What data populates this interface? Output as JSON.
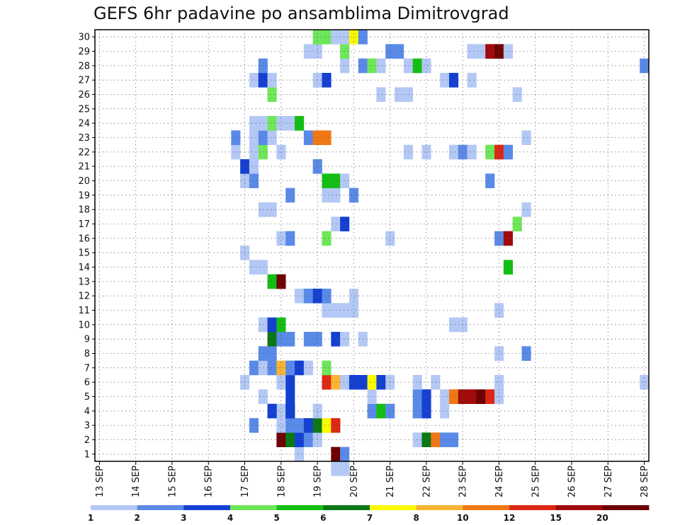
{
  "chart_data": {
    "type": "heatmap",
    "title": "GEFS 6hr padavine po ansamblima Dimitrovgrad",
    "xlabel": "",
    "ylabel": "",
    "x_tick_labels": [
      "13 SEP",
      "14 SEP",
      "15 SEP",
      "16 SEP",
      "17 SEP",
      "18 SEP",
      "19 SEP",
      "20 SEP",
      "21 SEP",
      "22 SEP",
      "23 SEP",
      "24 SEP",
      "25 SEP",
      "26 SEP",
      "27 SEP",
      "28 SEP"
    ],
    "y_tick_labels": [
      "1",
      "2",
      "3",
      "4",
      "5",
      "6",
      "7",
      "8",
      "9",
      "10",
      "11",
      "12",
      "13",
      "14",
      "15",
      "16",
      "17",
      "18",
      "19",
      "20",
      "21",
      "22",
      "23",
      "24",
      "25",
      "26",
      "27",
      "28",
      "29",
      "30"
    ],
    "x_range": [
      0,
      61
    ],
    "y_range": [
      0.5,
      30.5
    ],
    "grid": true,
    "color_levels": [
      {
        "label": "1",
        "color": "#b4c8f5"
      },
      {
        "label": "2",
        "color": "#5a8ae8"
      },
      {
        "label": "3",
        "color": "#1440d2"
      },
      {
        "label": "4",
        "color": "#6ee65a"
      },
      {
        "label": "5",
        "color": "#14be14"
      },
      {
        "label": "6",
        "color": "#0a7814"
      },
      {
        "label": "7",
        "color": "#fafa00"
      },
      {
        "label": "8",
        "color": "#fab432"
      },
      {
        "label": "10",
        "color": "#f07814"
      },
      {
        "label": "12",
        "color": "#dc2814"
      },
      {
        "label": "15",
        "color": "#a00a0a"
      },
      {
        "label": "20",
        "color": "#6e0000"
      }
    ],
    "colorbar_labels": [
      "1",
      "2",
      "3",
      "4",
      "5",
      "6",
      "7",
      "8",
      "10",
      "12",
      "15",
      "20"
    ],
    "cells": [
      {
        "x": 26.5,
        "y": 0,
        "c": 0
      },
      {
        "x": 27.5,
        "y": 0,
        "c": 0
      },
      {
        "x": 22.5,
        "y": 1,
        "c": 0
      },
      {
        "x": 26.5,
        "y": 1,
        "c": 11
      },
      {
        "x": 27.5,
        "y": 1,
        "c": 1
      },
      {
        "x": 20.5,
        "y": 2,
        "c": 11
      },
      {
        "x": 21.5,
        "y": 2,
        "c": 5
      },
      {
        "x": 22.5,
        "y": 2,
        "c": 2
      },
      {
        "x": 23.5,
        "y": 2,
        "c": 1
      },
      {
        "x": 24.5,
        "y": 2,
        "c": 0
      },
      {
        "x": 35.5,
        "y": 2,
        "c": 0
      },
      {
        "x": 36.5,
        "y": 2,
        "c": 5
      },
      {
        "x": 37.5,
        "y": 2,
        "c": 8
      },
      {
        "x": 38.5,
        "y": 2,
        "c": 1
      },
      {
        "x": 39.5,
        "y": 2,
        "c": 1
      },
      {
        "x": 17.5,
        "y": 3,
        "c": 1
      },
      {
        "x": 20.5,
        "y": 3,
        "c": 0
      },
      {
        "x": 21.5,
        "y": 3,
        "c": 1
      },
      {
        "x": 22.5,
        "y": 3,
        "c": 1
      },
      {
        "x": 23.5,
        "y": 3,
        "c": 2
      },
      {
        "x": 24.5,
        "y": 3,
        "c": 5
      },
      {
        "x": 25.5,
        "y": 3,
        "c": 6
      },
      {
        "x": 26.5,
        "y": 3,
        "c": 9
      },
      {
        "x": 20.5,
        "y": 4,
        "c": 0
      },
      {
        "x": 21.5,
        "y": 4,
        "c": 2
      },
      {
        "x": 24.5,
        "y": 4,
        "c": 0
      },
      {
        "x": 30.5,
        "y": 4,
        "c": 1
      },
      {
        "x": 31.5,
        "y": 4,
        "c": 4
      },
      {
        "x": 32.5,
        "y": 4,
        "c": 1
      },
      {
        "x": 35.5,
        "y": 4,
        "c": 1
      },
      {
        "x": 36.5,
        "y": 4,
        "c": 2
      },
      {
        "x": 38.5,
        "y": 4,
        "c": 0
      },
      {
        "x": 19.5,
        "y": 4,
        "c": 2
      },
      {
        "x": 21.5,
        "y": 4,
        "c": 2
      },
      {
        "x": 18.5,
        "y": 5,
        "c": 0
      },
      {
        "x": 21.5,
        "y": 5,
        "c": 2
      },
      {
        "x": 30.5,
        "y": 5,
        "c": 0
      },
      {
        "x": 35.5,
        "y": 5,
        "c": 1
      },
      {
        "x": 36.5,
        "y": 5,
        "c": 2
      },
      {
        "x": 38.5,
        "y": 5,
        "c": 0
      },
      {
        "x": 39.5,
        "y": 5,
        "c": 8
      },
      {
        "x": 40.5,
        "y": 5,
        "c": 10
      },
      {
        "x": 41.5,
        "y": 5,
        "c": 10
      },
      {
        "x": 42.5,
        "y": 5,
        "c": 11
      },
      {
        "x": 43.5,
        "y": 5,
        "c": 9
      },
      {
        "x": 44.5,
        "y": 5,
        "c": 0
      },
      {
        "x": 16.5,
        "y": 6,
        "c": 0
      },
      {
        "x": 20.5,
        "y": 6,
        "c": 0
      },
      {
        "x": 21.5,
        "y": 6,
        "c": 2
      },
      {
        "x": 25.5,
        "y": 6,
        "c": 9
      },
      {
        "x": 26.5,
        "y": 6,
        "c": 7
      },
      {
        "x": 27.5,
        "y": 6,
        "c": 0
      },
      {
        "x": 28.5,
        "y": 6,
        "c": 2
      },
      {
        "x": 29.5,
        "y": 6,
        "c": 2
      },
      {
        "x": 30.5,
        "y": 6,
        "c": 6
      },
      {
        "x": 31.5,
        "y": 6,
        "c": 2
      },
      {
        "x": 32.5,
        "y": 6,
        "c": 0
      },
      {
        "x": 35.5,
        "y": 6,
        "c": 0
      },
      {
        "x": 37.5,
        "y": 6,
        "c": 0
      },
      {
        "x": 44.5,
        "y": 6,
        "c": 0
      },
      {
        "x": 60.5,
        "y": 6,
        "c": 0
      },
      {
        "x": 17.5,
        "y": 7,
        "c": 1
      },
      {
        "x": 18.5,
        "y": 7,
        "c": 0
      },
      {
        "x": 19.5,
        "y": 7,
        "c": 1
      },
      {
        "x": 20.5,
        "y": 7,
        "c": 7
      },
      {
        "x": 21.5,
        "y": 7,
        "c": 1
      },
      {
        "x": 22.5,
        "y": 7,
        "c": 2
      },
      {
        "x": 23.5,
        "y": 7,
        "c": 0
      },
      {
        "x": 25.5,
        "y": 7,
        "c": 3
      },
      {
        "x": 18.5,
        "y": 8,
        "c": 1
      },
      {
        "x": 19.5,
        "y": 8,
        "c": 1
      },
      {
        "x": 44.5,
        "y": 8,
        "c": 0
      },
      {
        "x": 47.5,
        "y": 8,
        "c": 1
      },
      {
        "x": 19.5,
        "y": 9,
        "c": 5
      },
      {
        "x": 20.5,
        "y": 9,
        "c": 1
      },
      {
        "x": 21.5,
        "y": 9,
        "c": 1
      },
      {
        "x": 23.5,
        "y": 9,
        "c": 1
      },
      {
        "x": 24.5,
        "y": 9,
        "c": 1
      },
      {
        "x": 26.5,
        "y": 9,
        "c": 2
      },
      {
        "x": 27.5,
        "y": 9,
        "c": 0
      },
      {
        "x": 29.5,
        "y": 9,
        "c": 0
      },
      {
        "x": 18.5,
        "y": 10,
        "c": 0
      },
      {
        "x": 19.5,
        "y": 10,
        "c": 2
      },
      {
        "x": 20.5,
        "y": 10,
        "c": 4
      },
      {
        "x": 39.5,
        "y": 10,
        "c": 0
      },
      {
        "x": 40.5,
        "y": 10,
        "c": 0
      },
      {
        "x": 25.5,
        "y": 11,
        "c": 0
      },
      {
        "x": 26.5,
        "y": 11,
        "c": 0
      },
      {
        "x": 27.5,
        "y": 11,
        "c": 0
      },
      {
        "x": 28.5,
        "y": 11,
        "c": 0
      },
      {
        "x": 44.5,
        "y": 11,
        "c": 0
      },
      {
        "x": 22.5,
        "y": 12,
        "c": 0
      },
      {
        "x": 23.5,
        "y": 12,
        "c": 1
      },
      {
        "x": 24.5,
        "y": 12,
        "c": 2
      },
      {
        "x": 25.5,
        "y": 12,
        "c": 1
      },
      {
        "x": 28.5,
        "y": 12,
        "c": 0
      },
      {
        "x": 19.5,
        "y": 13,
        "c": 4
      },
      {
        "x": 20.5,
        "y": 13,
        "c": 11
      },
      {
        "x": 17.5,
        "y": 14,
        "c": 0
      },
      {
        "x": 18.5,
        "y": 14,
        "c": 0
      },
      {
        "x": 45.5,
        "y": 14,
        "c": 4
      },
      {
        "x": 16.5,
        "y": 15,
        "c": 0
      },
      {
        "x": 20.5,
        "y": 16,
        "c": 0
      },
      {
        "x": 21.5,
        "y": 16,
        "c": 1
      },
      {
        "x": 25.5,
        "y": 16,
        "c": 3
      },
      {
        "x": 32.5,
        "y": 16,
        "c": 0
      },
      {
        "x": 44.5,
        "y": 16,
        "c": 1
      },
      {
        "x": 45.5,
        "y": 16,
        "c": 10
      },
      {
        "x": 26.5,
        "y": 17,
        "c": 0
      },
      {
        "x": 27.5,
        "y": 17,
        "c": 2
      },
      {
        "x": 46.5,
        "y": 17,
        "c": 3
      },
      {
        "x": 18.5,
        "y": 18,
        "c": 0
      },
      {
        "x": 19.5,
        "y": 18,
        "c": 0
      },
      {
        "x": 47.5,
        "y": 18,
        "c": 0
      },
      {
        "x": 21.5,
        "y": 19,
        "c": 1
      },
      {
        "x": 25.5,
        "y": 19,
        "c": 0
      },
      {
        "x": 26.5,
        "y": 19,
        "c": 0
      },
      {
        "x": 28.5,
        "y": 19,
        "c": 1
      },
      {
        "x": 16.5,
        "y": 20,
        "c": 0
      },
      {
        "x": 17.5,
        "y": 20,
        "c": 1
      },
      {
        "x": 25.5,
        "y": 20,
        "c": 4
      },
      {
        "x": 26.5,
        "y": 20,
        "c": 4
      },
      {
        "x": 27.5,
        "y": 20,
        "c": 0
      },
      {
        "x": 43.5,
        "y": 20,
        "c": 1
      },
      {
        "x": 16.5,
        "y": 21,
        "c": 2
      },
      {
        "x": 17.5,
        "y": 21,
        "c": 0
      },
      {
        "x": 24.5,
        "y": 21,
        "c": 1
      },
      {
        "x": 15.5,
        "y": 22,
        "c": 0
      },
      {
        "x": 17.5,
        "y": 22,
        "c": 0
      },
      {
        "x": 18.5,
        "y": 22,
        "c": 3
      },
      {
        "x": 20.5,
        "y": 22,
        "c": 0
      },
      {
        "x": 34.5,
        "y": 22,
        "c": 0
      },
      {
        "x": 36.5,
        "y": 22,
        "c": 0
      },
      {
        "x": 39.5,
        "y": 22,
        "c": 0
      },
      {
        "x": 40.5,
        "y": 22,
        "c": 1
      },
      {
        "x": 41.5,
        "y": 22,
        "c": 0
      },
      {
        "x": 43.5,
        "y": 22,
        "c": 3
      },
      {
        "x": 44.5,
        "y": 22,
        "c": 9
      },
      {
        "x": 45.5,
        "y": 22,
        "c": 1
      },
      {
        "x": 15.5,
        "y": 23,
        "c": 1
      },
      {
        "x": 17.5,
        "y": 23,
        "c": 0
      },
      {
        "x": 18.5,
        "y": 23,
        "c": 1
      },
      {
        "x": 19.5,
        "y": 23,
        "c": 0
      },
      {
        "x": 23.5,
        "y": 23,
        "c": 1
      },
      {
        "x": 24.5,
        "y": 23,
        "c": 8
      },
      {
        "x": 25.5,
        "y": 23,
        "c": 8
      },
      {
        "x": 47.5,
        "y": 23,
        "c": 0
      },
      {
        "x": 17.5,
        "y": 24,
        "c": 0
      },
      {
        "x": 18.5,
        "y": 24,
        "c": 0
      },
      {
        "x": 19.5,
        "y": 24,
        "c": 3
      },
      {
        "x": 20.5,
        "y": 24,
        "c": 0
      },
      {
        "x": 21.5,
        "y": 24,
        "c": 0
      },
      {
        "x": 22.5,
        "y": 24,
        "c": 4
      },
      {
        "x": 19.5,
        "y": 26,
        "c": 3
      },
      {
        "x": 31.5,
        "y": 26,
        "c": 0
      },
      {
        "x": 33.5,
        "y": 26,
        "c": 0
      },
      {
        "x": 34.5,
        "y": 26,
        "c": 0
      },
      {
        "x": 46.5,
        "y": 26,
        "c": 0
      },
      {
        "x": 17.5,
        "y": 27,
        "c": 0
      },
      {
        "x": 18.5,
        "y": 27,
        "c": 2
      },
      {
        "x": 19.5,
        "y": 27,
        "c": 0
      },
      {
        "x": 24.5,
        "y": 27,
        "c": 0
      },
      {
        "x": 25.5,
        "y": 27,
        "c": 2
      },
      {
        "x": 38.5,
        "y": 27,
        "c": 0
      },
      {
        "x": 39.5,
        "y": 27,
        "c": 2
      },
      {
        "x": 41.5,
        "y": 27,
        "c": 0
      },
      {
        "x": 18.5,
        "y": 28,
        "c": 1
      },
      {
        "x": 27.5,
        "y": 28,
        "c": 0
      },
      {
        "x": 29.5,
        "y": 28,
        "c": 1
      },
      {
        "x": 30.5,
        "y": 28,
        "c": 3
      },
      {
        "x": 31.5,
        "y": 28,
        "c": 0
      },
      {
        "x": 34.5,
        "y": 28,
        "c": 0
      },
      {
        "x": 35.5,
        "y": 28,
        "c": 4
      },
      {
        "x": 36.5,
        "y": 28,
        "c": 0
      },
      {
        "x": 60.5,
        "y": 28,
        "c": 1
      },
      {
        "x": 23.5,
        "y": 29,
        "c": 0
      },
      {
        "x": 24.5,
        "y": 29,
        "c": 0
      },
      {
        "x": 27.5,
        "y": 29,
        "c": 3
      },
      {
        "x": 32.5,
        "y": 29,
        "c": 1
      },
      {
        "x": 33.5,
        "y": 29,
        "c": 1
      },
      {
        "x": 41.5,
        "y": 29,
        "c": 0
      },
      {
        "x": 42.5,
        "y": 29,
        "c": 0
      },
      {
        "x": 43.5,
        "y": 29,
        "c": 10
      },
      {
        "x": 44.5,
        "y": 29,
        "c": 11
      },
      {
        "x": 45.5,
        "y": 29,
        "c": 0
      },
      {
        "x": 24.5,
        "y": 30,
        "c": 3
      },
      {
        "x": 25.5,
        "y": 30,
        "c": 3
      },
      {
        "x": 26.5,
        "y": 30,
        "c": 0
      },
      {
        "x": 27.5,
        "y": 30,
        "c": 0
      },
      {
        "x": 28.5,
        "y": 30,
        "c": 6
      },
      {
        "x": 29.5,
        "y": 30,
        "c": 1
      }
    ]
  }
}
